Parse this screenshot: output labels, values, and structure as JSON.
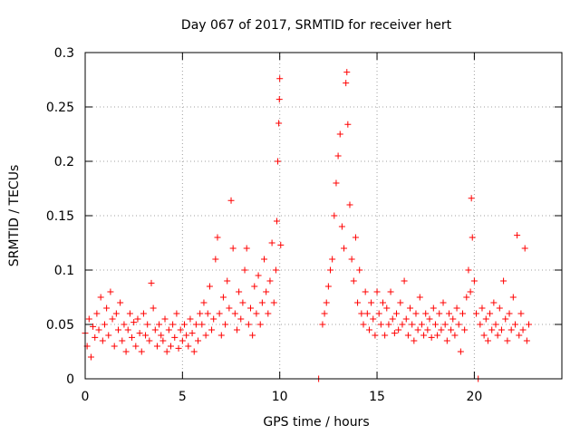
{
  "chart_data": {
    "type": "scatter",
    "title": "Day 067 of 2017, SRMTID for receiver hert",
    "xlabel": "GPS time / hours",
    "ylabel": "SRMTID / TECUs",
    "xlim": [
      0,
      24.5
    ],
    "ylim": [
      0,
      0.3
    ],
    "xticks": [
      0,
      5,
      10,
      15,
      20
    ],
    "xtick_labels": [
      "0",
      "5",
      "10",
      "15",
      "20"
    ],
    "yticks": [
      0,
      0.05,
      0.1,
      0.15,
      0.2,
      0.25,
      0.3
    ],
    "ytick_labels": [
      "0",
      "0.05",
      "0.1",
      "0.15",
      "0.2",
      "0.25",
      "0.3"
    ],
    "grid": true,
    "marker": "+",
    "series": [
      {
        "name": "SRMTID",
        "color": "#ff0000",
        "points": [
          [
            0.0,
            0.042
          ],
          [
            0.1,
            0.03
          ],
          [
            0.2,
            0.055
          ],
          [
            0.3,
            0.02
          ],
          [
            0.4,
            0.048
          ],
          [
            0.5,
            0.038
          ],
          [
            0.6,
            0.06
          ],
          [
            0.7,
            0.045
          ],
          [
            0.8,
            0.075
          ],
          [
            0.9,
            0.035
          ],
          [
            1.0,
            0.05
          ],
          [
            1.1,
            0.065
          ],
          [
            1.2,
            0.04
          ],
          [
            1.3,
            0.08
          ],
          [
            1.4,
            0.055
          ],
          [
            1.5,
            0.03
          ],
          [
            1.6,
            0.06
          ],
          [
            1.7,
            0.045
          ],
          [
            1.8,
            0.07
          ],
          [
            1.9,
            0.035
          ],
          [
            2.0,
            0.05
          ],
          [
            2.1,
            0.025
          ],
          [
            2.2,
            0.045
          ],
          [
            2.3,
            0.06
          ],
          [
            2.4,
            0.038
          ],
          [
            2.5,
            0.052
          ],
          [
            2.6,
            0.03
          ],
          [
            2.7,
            0.055
          ],
          [
            2.8,
            0.042
          ],
          [
            2.9,
            0.025
          ],
          [
            3.0,
            0.06
          ],
          [
            3.1,
            0.04
          ],
          [
            3.2,
            0.05
          ],
          [
            3.3,
            0.035
          ],
          [
            3.4,
            0.088
          ],
          [
            3.5,
            0.065
          ],
          [
            3.6,
            0.045
          ],
          [
            3.7,
            0.03
          ],
          [
            3.8,
            0.05
          ],
          [
            3.9,
            0.04
          ],
          [
            4.0,
            0.035
          ],
          [
            4.1,
            0.055
          ],
          [
            4.2,
            0.025
          ],
          [
            4.3,
            0.045
          ],
          [
            4.4,
            0.03
          ],
          [
            4.5,
            0.05
          ],
          [
            4.6,
            0.038
          ],
          [
            4.7,
            0.06
          ],
          [
            4.8,
            0.028
          ],
          [
            4.9,
            0.045
          ],
          [
            5.0,
            0.035
          ],
          [
            5.1,
            0.05
          ],
          [
            5.2,
            0.04
          ],
          [
            5.3,
            0.03
          ],
          [
            5.4,
            0.055
          ],
          [
            5.5,
            0.042
          ],
          [
            5.6,
            0.025
          ],
          [
            5.7,
            0.05
          ],
          [
            5.8,
            0.035
          ],
          [
            5.9,
            0.06
          ],
          [
            6.0,
            0.05
          ],
          [
            6.1,
            0.07
          ],
          [
            6.2,
            0.04
          ],
          [
            6.3,
            0.06
          ],
          [
            6.4,
            0.085
          ],
          [
            6.5,
            0.045
          ],
          [
            6.6,
            0.055
          ],
          [
            6.7,
            0.11
          ],
          [
            6.8,
            0.13
          ],
          [
            6.9,
            0.06
          ],
          [
            7.0,
            0.04
          ],
          [
            7.1,
            0.075
          ],
          [
            7.2,
            0.05
          ],
          [
            7.3,
            0.09
          ],
          [
            7.4,
            0.065
          ],
          [
            7.5,
            0.164
          ],
          [
            7.6,
            0.12
          ],
          [
            7.7,
            0.06
          ],
          [
            7.8,
            0.045
          ],
          [
            7.9,
            0.08
          ],
          [
            8.0,
            0.055
          ],
          [
            8.1,
            0.07
          ],
          [
            8.2,
            0.1
          ],
          [
            8.3,
            0.12
          ],
          [
            8.4,
            0.05
          ],
          [
            8.5,
            0.065
          ],
          [
            8.6,
            0.04
          ],
          [
            8.7,
            0.085
          ],
          [
            8.8,
            0.06
          ],
          [
            8.9,
            0.095
          ],
          [
            9.0,
            0.05
          ],
          [
            9.1,
            0.07
          ],
          [
            9.2,
            0.11
          ],
          [
            9.3,
            0.08
          ],
          [
            9.4,
            0.06
          ],
          [
            9.5,
            0.09
          ],
          [
            9.6,
            0.125
          ],
          [
            9.7,
            0.07
          ],
          [
            9.8,
            0.1
          ],
          [
            9.85,
            0.145
          ],
          [
            9.9,
            0.2
          ],
          [
            9.95,
            0.235
          ],
          [
            9.98,
            0.257
          ],
          [
            10.0,
            0.276
          ],
          [
            10.05,
            0.123
          ],
          [
            12.0,
            0.0
          ],
          [
            12.2,
            0.05
          ],
          [
            12.3,
            0.06
          ],
          [
            12.4,
            0.07
          ],
          [
            12.5,
            0.085
          ],
          [
            12.6,
            0.1
          ],
          [
            12.7,
            0.11
          ],
          [
            12.8,
            0.15
          ],
          [
            12.9,
            0.18
          ],
          [
            13.0,
            0.205
          ],
          [
            13.1,
            0.225
          ],
          [
            13.2,
            0.14
          ],
          [
            13.3,
            0.12
          ],
          [
            13.4,
            0.272
          ],
          [
            13.45,
            0.282
          ],
          [
            13.5,
            0.234
          ],
          [
            13.6,
            0.16
          ],
          [
            13.7,
            0.11
          ],
          [
            13.8,
            0.09
          ],
          [
            13.9,
            0.13
          ],
          [
            14.0,
            0.07
          ],
          [
            14.1,
            0.1
          ],
          [
            14.2,
            0.06
          ],
          [
            14.3,
            0.05
          ],
          [
            14.4,
            0.08
          ],
          [
            14.5,
            0.06
          ],
          [
            14.6,
            0.045
          ],
          [
            14.7,
            0.07
          ],
          [
            14.8,
            0.055
          ],
          [
            14.9,
            0.04
          ],
          [
            15.0,
            0.08
          ],
          [
            15.1,
            0.06
          ],
          [
            15.2,
            0.05
          ],
          [
            15.3,
            0.07
          ],
          [
            15.4,
            0.04
          ],
          [
            15.5,
            0.065
          ],
          [
            15.6,
            0.05
          ],
          [
            15.7,
            0.08
          ],
          [
            15.8,
            0.055
          ],
          [
            15.9,
            0.042
          ],
          [
            16.0,
            0.06
          ],
          [
            16.1,
            0.045
          ],
          [
            16.2,
            0.07
          ],
          [
            16.3,
            0.05
          ],
          [
            16.4,
            0.09
          ],
          [
            16.5,
            0.055
          ],
          [
            16.6,
            0.04
          ],
          [
            16.7,
            0.065
          ],
          [
            16.8,
            0.05
          ],
          [
            16.9,
            0.035
          ],
          [
            17.0,
            0.06
          ],
          [
            17.1,
            0.045
          ],
          [
            17.2,
            0.075
          ],
          [
            17.3,
            0.05
          ],
          [
            17.4,
            0.04
          ],
          [
            17.5,
            0.06
          ],
          [
            17.6,
            0.045
          ],
          [
            17.7,
            0.055
          ],
          [
            17.8,
            0.038
          ],
          [
            17.9,
            0.065
          ],
          [
            18.0,
            0.05
          ],
          [
            18.1,
            0.04
          ],
          [
            18.2,
            0.06
          ],
          [
            18.3,
            0.045
          ],
          [
            18.4,
            0.07
          ],
          [
            18.5,
            0.05
          ],
          [
            18.6,
            0.035
          ],
          [
            18.7,
            0.06
          ],
          [
            18.8,
            0.045
          ],
          [
            18.9,
            0.055
          ],
          [
            19.0,
            0.04
          ],
          [
            19.1,
            0.065
          ],
          [
            19.2,
            0.05
          ],
          [
            19.3,
            0.025
          ],
          [
            19.4,
            0.06
          ],
          [
            19.5,
            0.045
          ],
          [
            19.6,
            0.075
          ],
          [
            19.7,
            0.1
          ],
          [
            19.8,
            0.08
          ],
          [
            19.85,
            0.166
          ],
          [
            19.9,
            0.13
          ],
          [
            20.0,
            0.09
          ],
          [
            20.1,
            0.06
          ],
          [
            20.2,
            0.0
          ],
          [
            20.3,
            0.05
          ],
          [
            20.4,
            0.065
          ],
          [
            20.5,
            0.04
          ],
          [
            20.6,
            0.055
          ],
          [
            20.7,
            0.035
          ],
          [
            20.8,
            0.06
          ],
          [
            20.9,
            0.045
          ],
          [
            21.0,
            0.07
          ],
          [
            21.1,
            0.05
          ],
          [
            21.2,
            0.04
          ],
          [
            21.3,
            0.065
          ],
          [
            21.4,
            0.045
          ],
          [
            21.5,
            0.09
          ],
          [
            21.6,
            0.055
          ],
          [
            21.7,
            0.035
          ],
          [
            21.8,
            0.06
          ],
          [
            21.9,
            0.045
          ],
          [
            22.0,
            0.075
          ],
          [
            22.1,
            0.05
          ],
          [
            22.2,
            0.132
          ],
          [
            22.3,
            0.04
          ],
          [
            22.4,
            0.06
          ],
          [
            22.5,
            0.045
          ],
          [
            22.6,
            0.12
          ],
          [
            22.7,
            0.035
          ],
          [
            22.8,
            0.05
          ]
        ]
      }
    ]
  }
}
